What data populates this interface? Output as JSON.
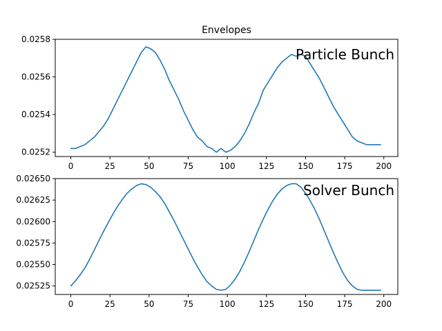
{
  "figure_title": "Envelopes",
  "colors": {
    "line": "#1f77b4"
  },
  "chart_data": [
    {
      "type": "line",
      "title": "Envelopes",
      "annotation": "Particle Bunch",
      "xlabel": "",
      "ylabel": "",
      "xlim": [
        -9.95,
        208.95
      ],
      "ylim": [
        0.025177,
        0.0258
      ],
      "xticks": [
        0,
        25,
        50,
        75,
        100,
        125,
        150,
        175,
        200
      ],
      "yticks": [
        0.0252,
        0.0254,
        0.0256,
        0.0258
      ],
      "ytick_labels": [
        "0.0252",
        "0.0254",
        "0.0256",
        "0.0258"
      ],
      "grid": false,
      "series": [
        {
          "x": [
            0,
            3,
            6,
            9,
            12,
            15,
            18,
            21,
            24,
            27,
            30,
            33,
            36,
            39,
            42,
            45,
            48,
            51,
            54,
            57,
            60,
            63,
            66,
            69,
            72,
            75,
            78,
            81,
            84,
            87,
            90,
            93,
            96,
            99,
            102,
            105,
            108,
            111,
            114,
            117,
            120,
            123,
            126,
            129,
            132,
            135,
            138,
            141,
            144,
            147,
            150,
            153,
            156,
            159,
            162,
            165,
            168,
            171,
            174,
            177,
            180,
            183,
            186,
            189,
            192,
            195,
            198
          ],
          "y": [
            0.02522,
            0.02522,
            0.02523,
            0.02524,
            0.02526,
            0.02528,
            0.02531,
            0.02534,
            0.02538,
            0.02543,
            0.02548,
            0.02553,
            0.02558,
            0.02563,
            0.02568,
            0.02573,
            0.02576,
            0.02575,
            0.02573,
            0.02569,
            0.02564,
            0.02558,
            0.02553,
            0.02548,
            0.02542,
            0.02537,
            0.02532,
            0.02528,
            0.02526,
            0.02523,
            0.02522,
            0.0252,
            0.02522,
            0.0252,
            0.02521,
            0.02523,
            0.02526,
            0.0253,
            0.02535,
            0.02541,
            0.02546,
            0.02553,
            0.02557,
            0.02561,
            0.02565,
            0.02568,
            0.0257,
            0.02572,
            0.02571,
            0.02572,
            0.02571,
            0.02567,
            0.02563,
            0.02559,
            0.02554,
            0.02549,
            0.02544,
            0.0254,
            0.02536,
            0.02532,
            0.02528,
            0.02526,
            0.02525,
            0.02524,
            0.02524,
            0.02524,
            0.02524
          ]
        }
      ]
    },
    {
      "type": "line",
      "annotation": "Solver Bunch",
      "xlabel": "",
      "ylabel": "",
      "xlim": [
        -9.95,
        208.95
      ],
      "ylim": [
        0.025151,
        0.0265
      ],
      "xticks": [
        0,
        25,
        50,
        75,
        100,
        125,
        150,
        175,
        200
      ],
      "yticks": [
        0.02525,
        0.0255,
        0.02575,
        0.026,
        0.02625,
        0.0265
      ],
      "ytick_labels": [
        "0.02525",
        "0.02550",
        "0.02575",
        "0.02600",
        "0.02625",
        "0.02650"
      ],
      "grid": false,
      "series": [
        {
          "x": [
            0,
            3,
            6,
            9,
            12,
            15,
            18,
            21,
            24,
            27,
            30,
            33,
            36,
            39,
            42,
            45,
            48,
            51,
            54,
            57,
            60,
            63,
            66,
            69,
            72,
            75,
            78,
            81,
            84,
            87,
            90,
            93,
            96,
            99,
            102,
            105,
            108,
            111,
            114,
            117,
            120,
            123,
            126,
            129,
            132,
            135,
            138,
            141,
            144,
            147,
            150,
            153,
            156,
            159,
            162,
            165,
            168,
            171,
            174,
            177,
            180,
            183,
            186,
            189,
            192,
            195,
            198
          ],
          "y": [
            0.02525,
            0.02531,
            0.02538,
            0.02546,
            0.02556,
            0.02567,
            0.02578,
            0.02589,
            0.02599,
            0.02609,
            0.02618,
            0.02626,
            0.02633,
            0.02638,
            0.02642,
            0.02644,
            0.02643,
            0.0264,
            0.02635,
            0.02629,
            0.02621,
            0.02611,
            0.02601,
            0.0259,
            0.02579,
            0.02568,
            0.02557,
            0.02547,
            0.02538,
            0.0253,
            0.02525,
            0.02521,
            0.0252,
            0.02521,
            0.02526,
            0.02533,
            0.02542,
            0.02553,
            0.02565,
            0.02578,
            0.02591,
            0.02603,
            0.02614,
            0.02624,
            0.02632,
            0.02638,
            0.02642,
            0.02644,
            0.02644,
            0.0264,
            0.02633,
            0.02624,
            0.02614,
            0.02602,
            0.02589,
            0.02576,
            0.02563,
            0.02551,
            0.0254,
            0.02531,
            0.02525,
            0.02521,
            0.0252,
            0.0252,
            0.0252,
            0.0252,
            0.0252
          ]
        }
      ]
    }
  ]
}
